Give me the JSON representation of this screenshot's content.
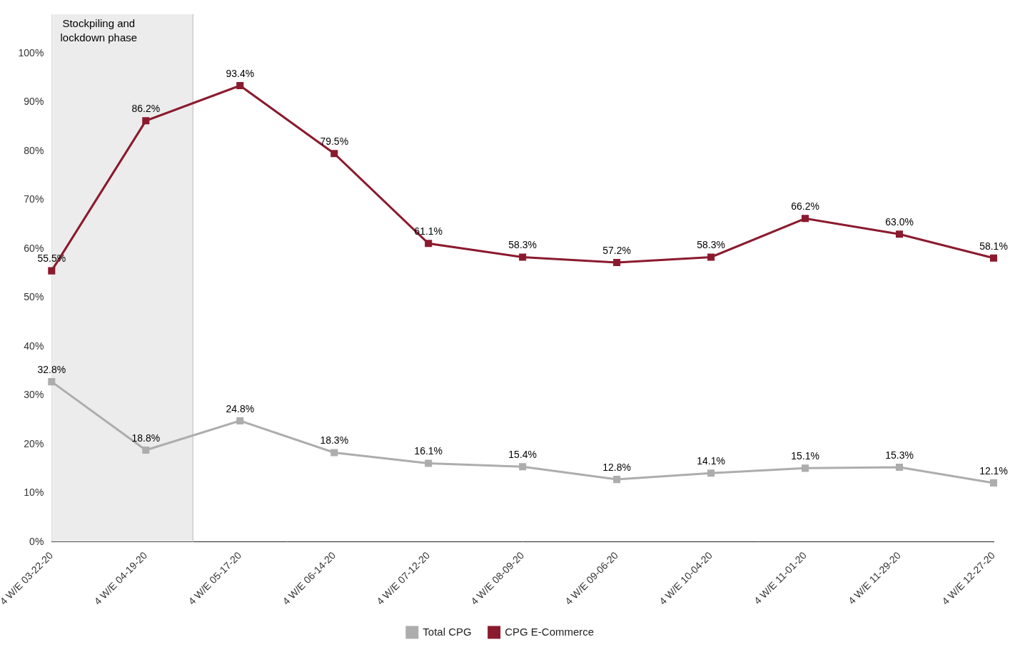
{
  "chart_data": {
    "type": "line",
    "categories": [
      "4 W/E 03-22-20",
      "4 W/E 04-19-20",
      "4 W/E 05-17-20",
      "4 W/E 06-14-20",
      "4 W/E 07-12-20",
      "4 W/E 08-09-20",
      "4 W/E 09-06-20",
      "4 W/E 10-04-20",
      "4 W/E 11-01-20",
      "4 W/E 11-29-20",
      "4 W/E 12-27-20"
    ],
    "series": [
      {
        "name": "Total CPG",
        "color": "#ADADAD",
        "marker": "square",
        "values": [
          32.8,
          18.8,
          24.8,
          18.3,
          16.1,
          15.4,
          12.8,
          14.1,
          15.1,
          15.3,
          12.1
        ],
        "value_labels": [
          "32.8%",
          "18.8%",
          "24.8%",
          "18.3%",
          "16.1%",
          "15.4%",
          "12.8%",
          "14.1%",
          "15.1%",
          "15.3%",
          "12.1%"
        ]
      },
      {
        "name": "CPG E-Commerce",
        "color": "#8B1A2E",
        "marker": "square",
        "values": [
          55.5,
          86.2,
          93.4,
          79.5,
          61.1,
          58.3,
          57.2,
          58.3,
          66.2,
          63.0,
          58.1
        ],
        "value_labels": [
          "55.5%",
          "86.2%",
          "93.4%",
          "79.5%",
          "61.1%",
          "58.3%",
          "57.2%",
          "58.3%",
          "66.2%",
          "63.0%",
          "58.1%"
        ]
      }
    ],
    "annotation": "Stockpiling and\nlockdown phase",
    "ylim": [
      0,
      108
    ],
    "yticks": [
      {
        "value": 0,
        "label": "0%"
      },
      {
        "value": 10,
        "label": "10%"
      },
      {
        "value": 20,
        "label": "20%"
      },
      {
        "value": 30,
        "label": "30%"
      },
      {
        "value": 40,
        "label": "40%"
      },
      {
        "value": 50,
        "label": "50%"
      },
      {
        "value": 60,
        "label": "60%"
      },
      {
        "value": 70,
        "label": "70%"
      },
      {
        "value": 80,
        "label": "80%"
      },
      {
        "value": 90,
        "label": "90%"
      },
      {
        "value": 100,
        "label": "100%"
      }
    ],
    "grid": false,
    "legend": "bottom",
    "data_labels": true
  }
}
